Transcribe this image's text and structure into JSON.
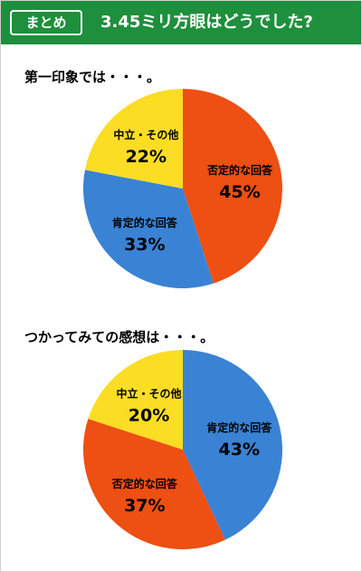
{
  "header": {
    "badge": "まとめ",
    "title": "3.45ミリ方眼はどうでした?",
    "color": "#1e8f3c"
  },
  "chart_data": [
    {
      "type": "pie",
      "title": "第一印象では・・・。",
      "slices": [
        {
          "label": "否定的な回答",
          "value": 45,
          "value_text": "45%",
          "color": "#ee4f12"
        },
        {
          "label": "肯定的な回答",
          "value": 33,
          "value_text": "33%",
          "color": "#3a82d4"
        },
        {
          "label": "中立・その他",
          "value": 22,
          "value_text": "22%",
          "color": "#fbdd23"
        }
      ]
    },
    {
      "type": "pie",
      "title": "つかってみての感想は・・・。",
      "slices": [
        {
          "label": "肯定的な回答",
          "value": 43,
          "value_text": "43%",
          "color": "#3a82d4"
        },
        {
          "label": "否定的な回答",
          "value": 37,
          "value_text": "37%",
          "color": "#ee4f12"
        },
        {
          "label": "中立・その他",
          "value": 20,
          "value_text": "20%",
          "color": "#fbdd23"
        }
      ]
    }
  ]
}
